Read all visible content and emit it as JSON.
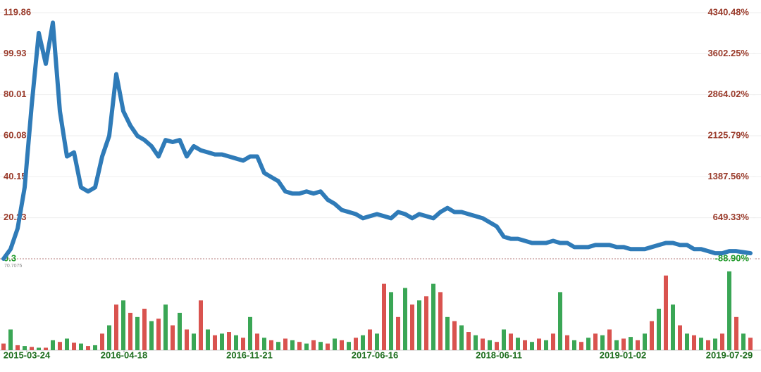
{
  "chart_data": {
    "type": "line",
    "annotation": "70.7075",
    "xlim": [
      0,
      106
    ],
    "xticks": [
      {
        "value": 3.3,
        "label": "2015-03-24"
      },
      {
        "value": 17.1,
        "label": "2016-04-18"
      },
      {
        "value": 34.9,
        "label": "2016-11-21"
      },
      {
        "value": 52.7,
        "label": "2017-06-16"
      },
      {
        "value": 70.3,
        "label": "2018-06-11"
      },
      {
        "value": 87.9,
        "label": "2019-01-02"
      },
      {
        "value": 103,
        "label": "2019-07-29"
      }
    ],
    "ylim": [
      0.3,
      119.86
    ],
    "yticks": [
      0.3,
      20.23,
      40.15,
      60.08,
      80.01,
      99.93,
      119.86
    ],
    "y2lim": [
      -88.9,
      4340.48
    ],
    "y2ticks": [
      {
        "value": -88.9,
        "label": "-88.90%"
      },
      {
        "value": 649.33,
        "label": "649.33%"
      },
      {
        "value": 1387.56,
        "label": "1387.56%"
      },
      {
        "value": 2125.79,
        "label": "2125.79%"
      },
      {
        "value": 2864.02,
        "label": "2864.02%"
      },
      {
        "value": 3602.25,
        "label": "3602.25%"
      },
      {
        "value": 4340.48,
        "label": "4340.48%"
      }
    ],
    "grid": true,
    "series": [
      {
        "color": "#2f7bb8",
        "values": [
          0.3,
          5,
          15,
          35,
          75,
          110,
          95,
          115,
          72,
          50,
          52,
          35,
          33,
          35,
          50,
          60,
          90,
          72,
          65,
          60,
          58,
          55,
          50,
          58,
          57,
          58,
          50,
          55,
          53,
          52,
          51,
          51,
          50,
          49,
          48,
          50,
          50,
          42,
          40,
          38,
          33,
          32,
          32,
          33,
          32,
          33,
          29,
          27,
          24,
          23,
          22,
          20,
          21,
          22,
          21,
          20,
          23,
          22,
          20,
          22,
          21,
          20,
          23,
          25,
          23,
          23,
          22,
          21,
          20,
          18,
          16,
          11,
          10,
          10,
          9,
          8,
          8,
          8,
          9,
          8,
          8,
          6,
          6,
          6,
          7,
          7,
          7,
          6,
          6,
          5,
          5,
          5,
          6,
          7,
          8,
          8,
          7,
          7,
          5,
          5,
          4,
          3,
          3,
          4,
          4,
          3.5,
          3
        ]
      }
    ],
    "volume": {
      "ylim": [
        0,
        100
      ],
      "colors": [
        "#d9534f",
        "#3aa655"
      ],
      "values": [
        8,
        25,
        6,
        5,
        4,
        3,
        3,
        12,
        10,
        14,
        9,
        8,
        5,
        6,
        20,
        30,
        55,
        60,
        45,
        40,
        50,
        35,
        38,
        55,
        30,
        45,
        25,
        20,
        60,
        25,
        18,
        20,
        22,
        18,
        15,
        40,
        20,
        15,
        12,
        10,
        14,
        12,
        10,
        8,
        12,
        10,
        8,
        14,
        12,
        10,
        15,
        18,
        25,
        20,
        80,
        70,
        40,
        75,
        55,
        60,
        65,
        80,
        70,
        40,
        35,
        30,
        22,
        18,
        14,
        12,
        10,
        25,
        20,
        15,
        12,
        10,
        14,
        12,
        20,
        70,
        18,
        12,
        10,
        15,
        20,
        18,
        25,
        12,
        14,
        16,
        12,
        20,
        35,
        50,
        90,
        55,
        30,
        20,
        18,
        15,
        12,
        14,
        20,
        95,
        40,
        20,
        15
      ]
    }
  }
}
